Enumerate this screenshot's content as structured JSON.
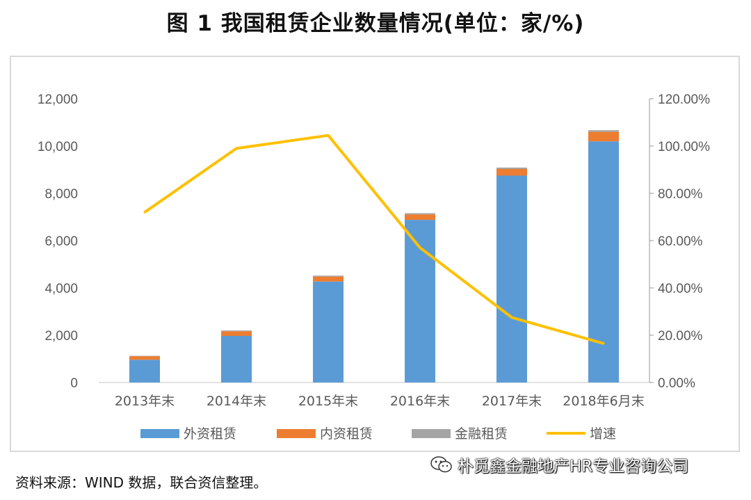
{
  "title": "图 1   我国租赁企业数量情况(单位：家/%)",
  "source_note": "资料来源：WIND 数据，联合资信整理。",
  "watermark": "朴觅鑫金融地产HR专业咨询公司",
  "chart_data": {
    "type": "bar",
    "stacked": true,
    "categories": [
      "2013年末",
      "2014年末",
      "2015年末",
      "2016年末",
      "2017年末",
      "2018年6月末"
    ],
    "series": [
      {
        "name": "外资租赁",
        "type": "bar",
        "axis": "left",
        "color": "#5b9bd5",
        "values": [
          960,
          1970,
          4270,
          6880,
          8750,
          10200
        ]
      },
      {
        "name": "内资租赁",
        "type": "bar",
        "axis": "left",
        "color": "#ed7d31",
        "values": [
          150,
          200,
          210,
          230,
          280,
          400
        ]
      },
      {
        "name": "金融租赁",
        "type": "bar",
        "axis": "left",
        "color": "#a5a5a5",
        "values": [
          20,
          30,
          40,
          50,
          60,
          70
        ]
      },
      {
        "name": "增速",
        "type": "line",
        "axis": "right",
        "color": "#ffc000",
        "values": [
          72.0,
          99.0,
          104.5,
          57.0,
          27.5,
          16.5
        ]
      }
    ],
    "y_left": {
      "ylim": [
        0,
        12000
      ],
      "ticks": [
        0,
        2000,
        4000,
        6000,
        8000,
        10000,
        12000
      ],
      "tick_labels": [
        "0",
        "2,000",
        "4,000",
        "6,000",
        "8,000",
        "10,000",
        "12,000"
      ]
    },
    "y_right": {
      "ylim": [
        0,
        120
      ],
      "ticks": [
        0,
        20,
        40,
        60,
        80,
        100,
        120
      ],
      "tick_labels": [
        "0.00%",
        "20.00%",
        "40.00%",
        "60.00%",
        "80.00%",
        "100.00%",
        "120.00%"
      ]
    },
    "legend": "bottom",
    "grid": false
  }
}
